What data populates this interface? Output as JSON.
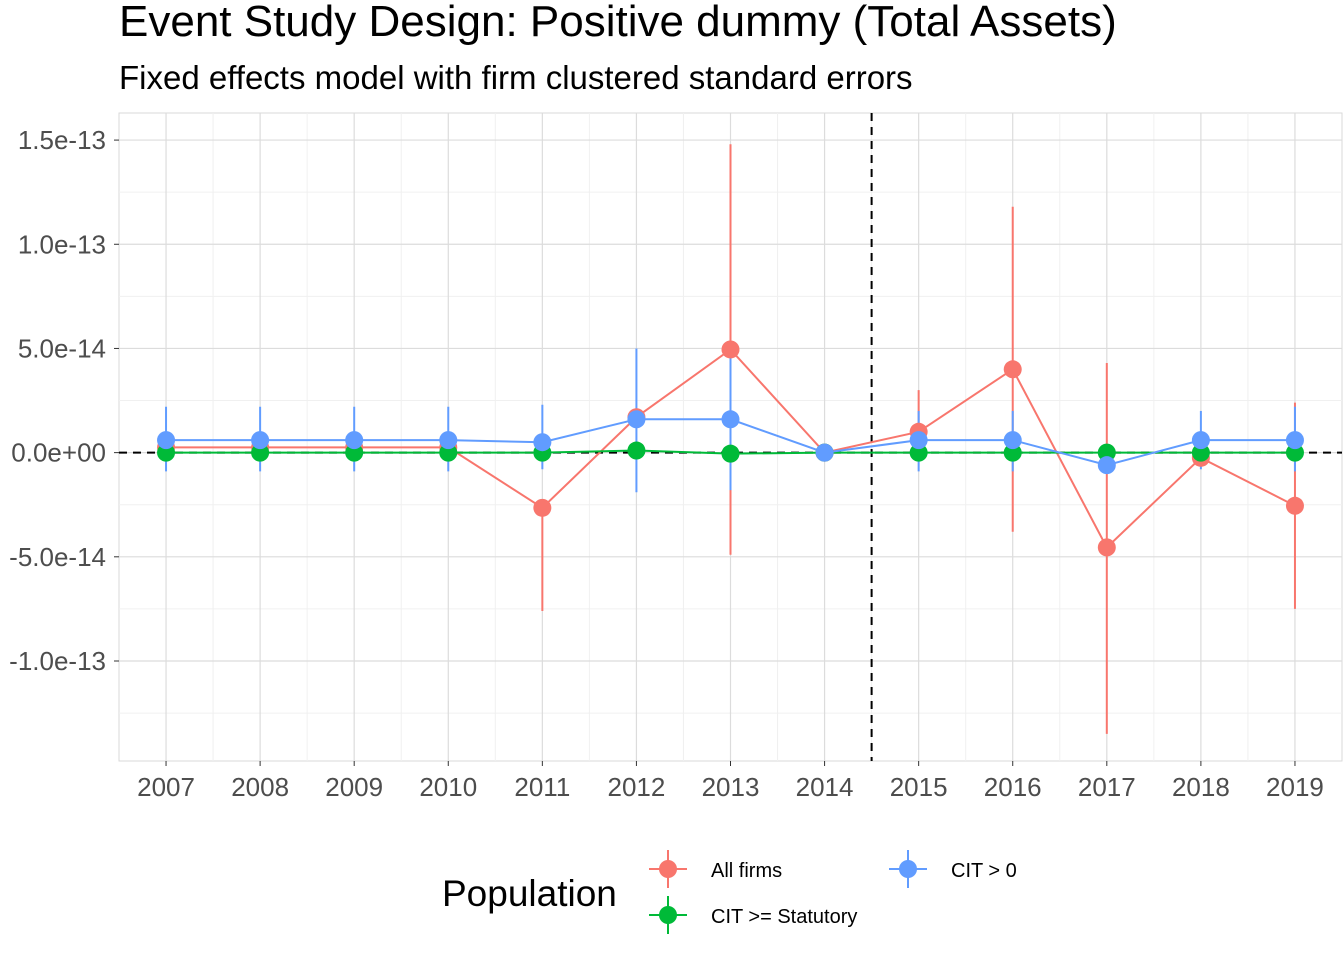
{
  "chart_data": {
    "type": "line",
    "title": "Event Study Design: Positive dummy (Total Assets)",
    "subtitle": "Fixed effects model with firm clustered standard errors",
    "xlabel": "",
    "ylabel": "",
    "x": [
      2007,
      2008,
      2009,
      2010,
      2011,
      2012,
      2013,
      2014,
      2015,
      2016,
      2017,
      2018,
      2019
    ],
    "x_tick_labels": [
      "2007",
      "2008",
      "2009",
      "2010",
      "2011",
      "2012",
      "2013",
      "2014",
      "2015",
      "2016",
      "2017",
      "2018",
      "2019"
    ],
    "y_ticks": [
      1.5e-13,
      1e-13,
      5e-14,
      0,
      -5e-14,
      -1e-13
    ],
    "y_tick_labels": [
      "1.5e-13",
      "1.0e-13",
      "5.0e-14",
      "0.0e+00",
      "-5.0e-14",
      "-1.0e-13"
    ],
    "ylim": [
      -1.48e-13,
      1.63e-13
    ],
    "xlim": [
      2006.5,
      2019.5
    ],
    "vline_x": 2014.5,
    "hline_y": 0,
    "grid": true,
    "legend": {
      "title": "Population",
      "position": "bottom"
    },
    "series": [
      {
        "name": "All firms",
        "color": "#F8766D",
        "values": [
          2.5e-15,
          2.5e-15,
          2.5e-15,
          2.5e-15,
          -2.65e-14,
          1.7e-14,
          4.95e-14,
          0,
          1e-14,
          4e-14,
          -4.55e-14,
          -2.5e-15,
          -2.55e-14
        ],
        "lower": [
          null,
          null,
          null,
          null,
          -7.6e-14,
          null,
          -4.9e-14,
          null,
          null,
          -3.8e-14,
          -1.35e-13,
          null,
          -7.5e-14
        ],
        "upper": [
          null,
          null,
          null,
          null,
          null,
          null,
          1.48e-13,
          null,
          3e-14,
          1.18e-13,
          4.3e-14,
          null,
          2.4e-14
        ]
      },
      {
        "name": "CIT >= Statutory",
        "color": "#00BA38",
        "values": [
          0,
          0,
          0,
          0,
          0,
          1e-15,
          -5e-16,
          0,
          0,
          0,
          0,
          0,
          0
        ],
        "lower": [
          null,
          null,
          null,
          null,
          null,
          null,
          null,
          null,
          null,
          null,
          null,
          null,
          null
        ],
        "upper": [
          null,
          null,
          null,
          null,
          null,
          null,
          null,
          null,
          null,
          null,
          null,
          null,
          null
        ]
      },
      {
        "name": "CIT > 0",
        "color": "#619CFF",
        "values": [
          6e-15,
          6e-15,
          6e-15,
          6e-15,
          5e-15,
          1.6e-14,
          1.6e-14,
          0,
          6e-15,
          6e-15,
          -6e-15,
          6e-15,
          6e-15
        ],
        "lower": [
          -9e-15,
          -9e-15,
          -9e-15,
          -9e-15,
          -8e-15,
          -1.9e-14,
          -1.8e-14,
          null,
          -9e-15,
          -9e-15,
          null,
          -8e-15,
          -9e-15
        ],
        "upper": [
          2.2e-14,
          2.2e-14,
          2.2e-14,
          2.2e-14,
          2.3e-14,
          5e-14,
          5e-14,
          null,
          2e-14,
          2e-14,
          null,
          2e-14,
          2.2e-14
        ]
      }
    ]
  }
}
